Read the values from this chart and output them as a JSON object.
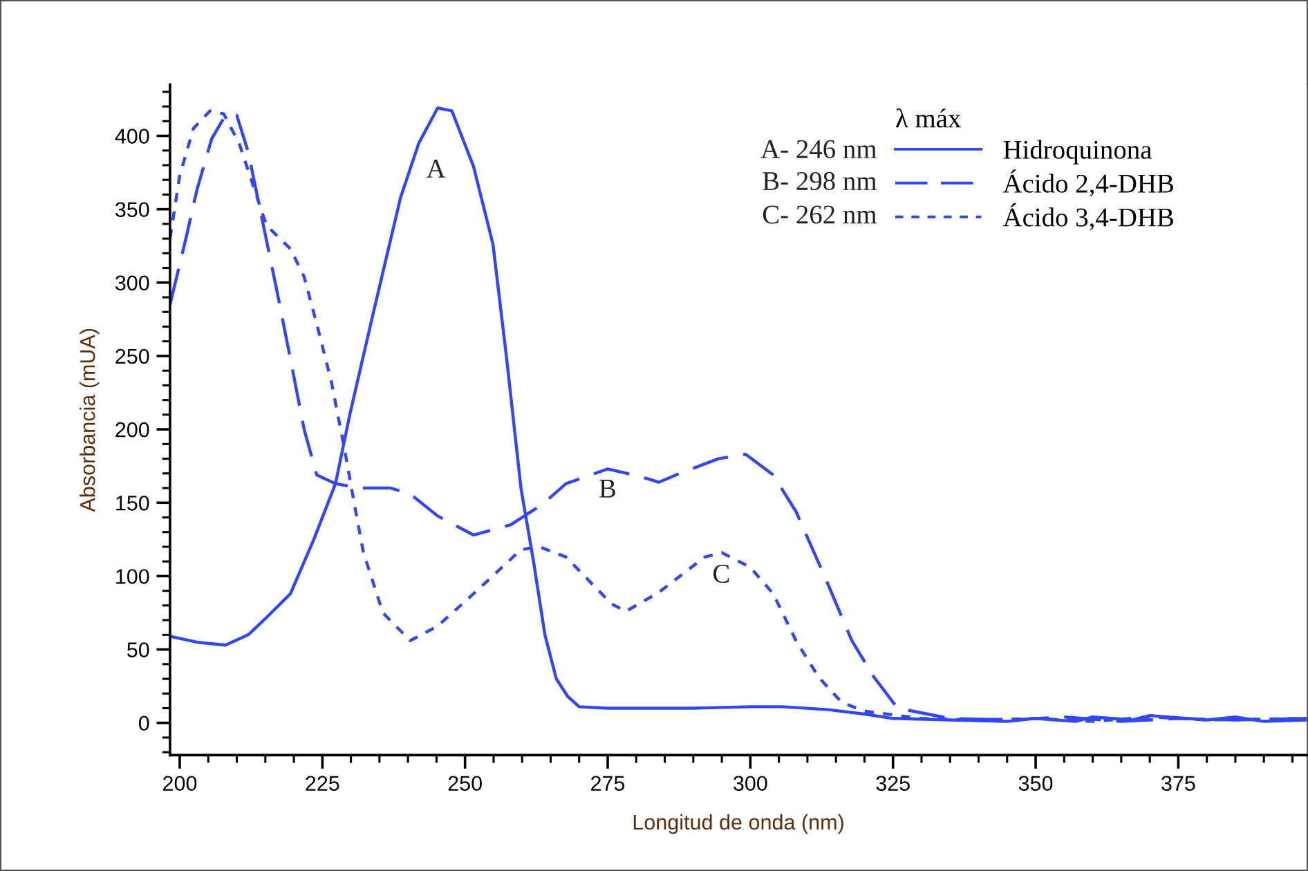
{
  "chart_data": {
    "type": "line",
    "xlabel": "Longitud de onda (nm)",
    "ylabel": "Absorbancia (mUA)",
    "xlim": [
      198.3,
      397.5
    ],
    "ylim": [
      -22,
      435
    ],
    "xticks": [
      200,
      225,
      250,
      275,
      300,
      325,
      350,
      375
    ],
    "yticks": [
      0,
      50,
      100,
      150,
      200,
      250,
      300,
      350,
      400
    ],
    "grid": false,
    "legend": "top right",
    "legend_title": "λ máx",
    "series": [
      {
        "name": "Hidroquinona",
        "color": "#3347f0",
        "line_style": "solid",
        "x": [
          198.3,
          203,
          208,
          212,
          215,
          219.4,
          223.5,
          227.3,
          229.8,
          233.9,
          238.7,
          241.9,
          245.2,
          247.7,
          251.5,
          254.9,
          257.3,
          259.8,
          262,
          264,
          266,
          268,
          270,
          275,
          290,
          300,
          305.7,
          313.7,
          320,
          325,
          335,
          345,
          350,
          357,
          360,
          367,
          370,
          380,
          385,
          390,
          397.5
        ],
        "values": [
          59,
          55,
          53,
          60,
          71,
          88,
          125,
          163,
          210,
          279,
          358,
          395,
          419,
          417,
          379,
          326,
          248,
          160,
          110,
          60,
          30,
          18,
          11,
          10,
          10,
          11,
          11,
          9,
          6,
          3,
          2,
          1,
          3,
          1,
          4,
          2,
          5,
          2,
          4,
          1,
          2
        ]
      },
      {
        "name": "Ácido 2,4-DHB",
        "color": "#3347f0",
        "line_style": "dashed",
        "x": [
          198.3,
          201.2,
          203,
          205.6,
          208,
          210,
          212,
          214.5,
          217,
          219.4,
          221.8,
          224,
          227.3,
          231.5,
          237,
          240.4,
          245.2,
          251.5,
          258,
          263.6,
          267.7,
          275,
          280.6,
          284,
          287,
          294.4,
          299.2,
          304,
          308,
          313,
          317.8,
          321.7,
          325.8,
          335,
          345,
          355,
          365,
          375,
          385,
          397.5
        ],
        "values": [
          285,
          332,
          363,
          398,
          414,
          414,
          389,
          342,
          295,
          248,
          200,
          169,
          163,
          160,
          160,
          156,
          141,
          128,
          135,
          149,
          163,
          173,
          168,
          164,
          169,
          180,
          183,
          169,
          144,
          100,
          56,
          31,
          10,
          3,
          2,
          4,
          1,
          3,
          2,
          3
        ]
      },
      {
        "name": "Ácido 3,4-DHB",
        "color": "#3347f0",
        "line_style": "dotted",
        "x": [
          198.3,
          200,
          202.4,
          205.3,
          207.7,
          210.4,
          212.8,
          215.2,
          219.4,
          221.8,
          224.2,
          226.6,
          229,
          230.7,
          232.2,
          235.6,
          240.4,
          245.2,
          251.5,
          259.8,
          263,
          267.7,
          275.7,
          278.2,
          284,
          292,
          295,
          300,
          304,
          308,
          312,
          316,
          320,
          330,
          340,
          350,
          360,
          370,
          380,
          397.5
        ],
        "values": [
          330,
          373,
          405,
          417,
          415,
          395,
          367,
          339,
          323,
          304,
          269,
          232,
          184,
          147,
          116,
          75,
          56,
          66,
          88,
          118,
          120,
          113,
          81,
          76,
          89,
          113,
          116,
          106,
          88,
          56,
          31,
          14,
          8,
          3,
          2,
          3,
          1,
          4,
          2,
          3
        ]
      }
    ],
    "annotations": [
      "A",
      "B",
      "C",
      "A- 246 nm",
      "B- 298 nm",
      "C- 262 nm"
    ]
  }
}
